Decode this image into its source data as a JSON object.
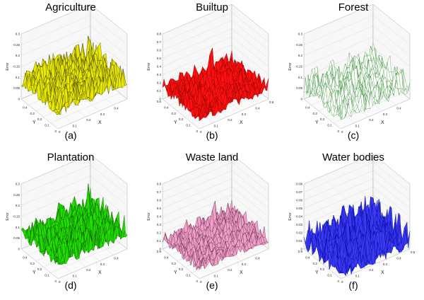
{
  "figure": {
    "panels": [
      {
        "title": "Agriculture",
        "caption": "(a)"
      },
      {
        "title": "Builtup",
        "caption": "(b)"
      },
      {
        "title": "Forest",
        "caption": "(c)"
      },
      {
        "title": "Plantation",
        "caption": "(d)"
      },
      {
        "title": "Waste land",
        "caption": "(e)"
      },
      {
        "title": "Water bodies",
        "caption": "(f)"
      }
    ]
  },
  "chart_data": [
    {
      "type": "surface3d",
      "title": "Agriculture",
      "caption": "(a)",
      "xlabel": "X",
      "ylabel": "Y",
      "zlabel": "Error",
      "xlim": [
        0,
        0.5
      ],
      "ylim": [
        0,
        0.5
      ],
      "zlim": [
        0,
        0.3
      ],
      "xticks": [
        "0",
        "0.1",
        "0.2",
        "0.3",
        "0.4"
      ],
      "yticks": [
        "0",
        "0.1",
        "0.2",
        "0.3",
        "0.4"
      ],
      "zticks": [
        "0",
        "0.05",
        "0.1",
        "0.15",
        "0.2",
        "0.25",
        "0.3"
      ],
      "surface_color": "#e8e800",
      "mesh_color": "#3a3a00",
      "base_error": 0.06,
      "noise_amplitude": 0.1,
      "peaks": [
        {
          "x": 0.45,
          "y": 0.42,
          "error": 0.24
        }
      ]
    },
    {
      "type": "surface3d",
      "title": "Builtup",
      "caption": "(b)",
      "xlabel": "X",
      "ylabel": "Y",
      "zlabel": "Error",
      "xlim": [
        0,
        0.5
      ],
      "ylim": [
        0,
        0.5
      ],
      "zlim": [
        0,
        0.8
      ],
      "xticks": [
        "0",
        "0.1",
        "0.2",
        "0.3",
        "0.4",
        "0.5"
      ],
      "yticks": [
        "0",
        "0.1",
        "0.2",
        "0.3",
        "0.4",
        "0.5"
      ],
      "zticks": [
        "0",
        "0.1",
        "0.2",
        "0.3",
        "0.4",
        "0.5",
        "0.6",
        "0.7",
        "0.8"
      ],
      "surface_color": "#ff1010",
      "mesh_color": "#7a0000",
      "base_error": 0.08,
      "noise_amplitude": 0.18,
      "peaks": [
        {
          "x": 0.28,
          "y": 0.36,
          "error": 0.72
        },
        {
          "x": 0.1,
          "y": 0.18,
          "error": 0.45
        },
        {
          "x": 0.4,
          "y": 0.2,
          "error": 0.4
        }
      ]
    },
    {
      "type": "surface3d",
      "title": "Forest",
      "caption": "(c)",
      "xlabel": "X",
      "ylabel": "Y",
      "zlabel": "Error",
      "xlim": [
        0,
        0.5
      ],
      "ylim": [
        0,
        0.5
      ],
      "zlim": [
        0,
        0.3
      ],
      "xticks": [
        "0",
        "0.1",
        "0.2",
        "0.3",
        "0.4"
      ],
      "yticks": [
        "0",
        "0.1",
        "0.2",
        "0.3",
        "0.4"
      ],
      "zticks": [
        "0",
        "0.05",
        "0.1",
        "0.15",
        "0.2",
        "0.25",
        "0.3"
      ],
      "surface_color": "#ffffff",
      "mesh_color": "#2e8b2e",
      "base_error": 0.03,
      "noise_amplitude": 0.1,
      "peaks": []
    },
    {
      "type": "surface3d",
      "title": "Plantation",
      "caption": "(d)",
      "xlabel": "X",
      "ylabel": "Y",
      "zlabel": "Error",
      "xlim": [
        0,
        0.5
      ],
      "ylim": [
        0,
        0.5
      ],
      "zlim": [
        0,
        0.3
      ],
      "xticks": [
        "0",
        "0.1",
        "0.2",
        "0.3",
        "0.4"
      ],
      "yticks": [
        "0",
        "0.1",
        "0.2",
        "0.3",
        "0.4"
      ],
      "zticks": [
        "0",
        "0.05",
        "0.1",
        "0.15",
        "0.2",
        "0.25",
        "0.3"
      ],
      "surface_color": "#22dd00",
      "mesh_color": "#0a4a00",
      "base_error": 0.05,
      "noise_amplitude": 0.1,
      "peaks": [
        {
          "x": 0.42,
          "y": 0.38,
          "error": 0.24
        }
      ]
    },
    {
      "type": "surface3d",
      "title": "Waste land",
      "caption": "(e)",
      "xlabel": "X",
      "ylabel": "Y",
      "zlabel": "Error",
      "xlim": [
        0,
        0.5
      ],
      "ylim": [
        0,
        0.5
      ],
      "zlim": [
        0,
        0.8
      ],
      "xticks": [
        "0",
        "0.1",
        "0.2",
        "0.3",
        "0.4"
      ],
      "yticks": [
        "0",
        "0.1",
        "0.2",
        "0.3",
        "0.4",
        "0.5"
      ],
      "zticks": [
        "0",
        "0.1",
        "0.2",
        "0.3",
        "0.4",
        "0.5",
        "0.6",
        "0.7",
        "0.8"
      ],
      "surface_color": "#f0a0c8",
      "mesh_color": "#5a2040",
      "base_error": 0.08,
      "noise_amplitude": 0.16,
      "peaks": [
        {
          "x": 0.3,
          "y": 0.36,
          "error": 0.62
        },
        {
          "x": 0.45,
          "y": 0.28,
          "error": 0.46
        }
      ]
    },
    {
      "type": "surface3d",
      "title": "Water bodies",
      "caption": "(f)",
      "xlabel": "X",
      "ylabel": "Y",
      "zlabel": "Error",
      "xlim": [
        0,
        0.5
      ],
      "ylim": [
        0,
        0.5
      ],
      "zlim": [
        0,
        0.08
      ],
      "xticks": [
        "0",
        "0.1",
        "0.2",
        "0.3",
        "0.4",
        "0.5"
      ],
      "yticks": [
        "0",
        "0.1",
        "0.2",
        "0.3",
        "0.4",
        "0.5"
      ],
      "zticks": [
        "0",
        "0.01",
        "0.02",
        "0.03",
        "0.04",
        "0.05",
        "0.06",
        "0.07",
        "0.08"
      ],
      "surface_color": "#3a3aee",
      "mesh_color": "#0000a0",
      "base_error": 0.0,
      "noise_amplitude": 0.035,
      "peaks": [
        {
          "x": 0.3,
          "y": 0.3,
          "error": 0.05
        }
      ]
    }
  ]
}
